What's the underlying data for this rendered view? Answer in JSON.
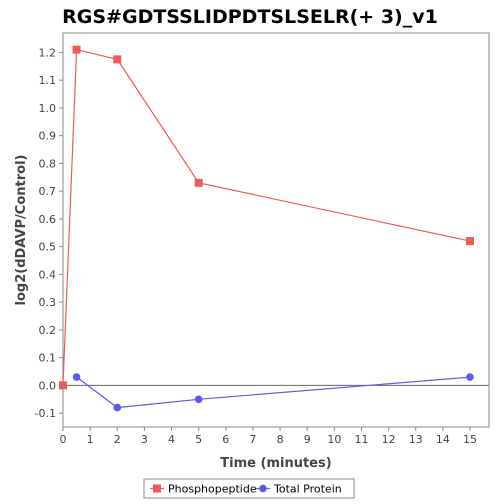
{
  "chart_data": {
    "type": "line",
    "title": "RGS#GDTSSLIDPDTSLSELR(+ 3)_v1",
    "xlabel": "Time (minutes)",
    "ylabel": "log2(dDAVP/Control)",
    "xlim": [
      0,
      15.7
    ],
    "ylim": [
      -0.15,
      1.27
    ],
    "x_ticks": [
      0,
      1,
      2,
      3,
      4,
      5,
      6,
      7,
      8,
      9,
      10,
      11,
      12,
      13,
      14,
      15
    ],
    "y_ticks": [
      -0.1,
      0.0,
      0.1,
      0.2,
      0.3,
      0.4,
      0.5,
      0.6,
      0.7,
      0.8,
      0.9,
      1.0,
      1.1,
      1.2
    ],
    "x_tick_labels": [
      "0",
      "1",
      "2",
      "3",
      "4",
      "5",
      "6",
      "7",
      "8",
      "9",
      "10",
      "11",
      "12",
      "13",
      "14",
      "15"
    ],
    "y_tick_labels": [
      "-0.1",
      "0.0",
      "0.1",
      "0.2",
      "0.3",
      "0.4",
      "0.5",
      "0.6",
      "0.7",
      "0.8",
      "0.9",
      "1.0",
      "1.1",
      "1.2"
    ],
    "grid": false,
    "zero_line": true,
    "legend_position": "bottom",
    "series": [
      {
        "name": "Phosphopeptide",
        "color": "#f05a5a",
        "marker": "square",
        "x": [
          0,
          0.5,
          2,
          5,
          15
        ],
        "y": [
          0.0,
          1.21,
          1.175,
          0.73,
          0.52
        ]
      },
      {
        "name": "Total Protein",
        "color": "#5a5af0",
        "marker": "circle",
        "x": [
          0.5,
          2,
          5,
          15
        ],
        "y": [
          0.03,
          -0.08,
          -0.05,
          0.03
        ]
      }
    ]
  }
}
